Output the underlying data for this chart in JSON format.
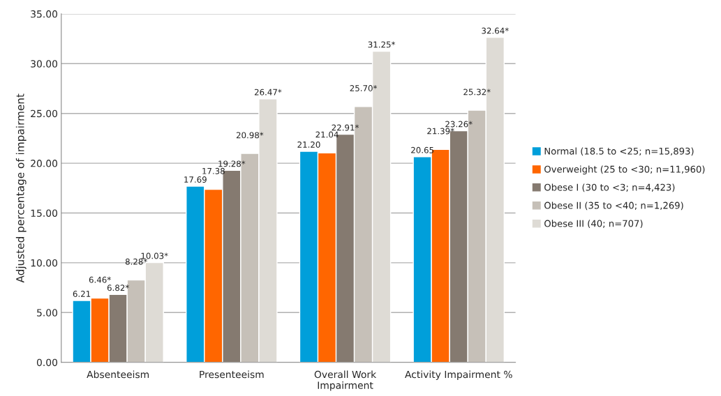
{
  "chart_data": {
    "type": "bar",
    "ylabel": "Adjusted percentage of impairment",
    "categories": [
      "Absenteeism",
      "Presenteeism",
      "Overall Work\nImpairment",
      "Activity Impairment %"
    ],
    "series": [
      {
        "name": "Normal (18.5 to <25; n=15,893)",
        "color": "#009fda",
        "values": [
          6.21,
          17.69,
          21.2,
          20.65
        ],
        "value_labels": [
          "6.21",
          "17.69",
          "21.20",
          "20.65"
        ]
      },
      {
        "name": "Overweight (25 to <30; n=11,960)",
        "color": "#ff6600",
        "values": [
          6.46,
          17.38,
          21.04,
          21.39
        ],
        "value_labels": [
          "6.46*",
          "17.38",
          "21.04",
          "21.39*"
        ]
      },
      {
        "name": "Obese I (30 to <3; n=4,423)",
        "color": "#857a70",
        "values": [
          6.82,
          19.28,
          22.91,
          23.26
        ],
        "value_labels": [
          "6.82*",
          "19.28*",
          "22.91*",
          "23.26*"
        ]
      },
      {
        "name": "Obese II (35 to <40; n=1,269)",
        "color": "#c6c0b8",
        "values": [
          8.28,
          20.98,
          25.7,
          25.32
        ],
        "value_labels": [
          "8.28*",
          "20.98*",
          "25.70*",
          "25.32*"
        ]
      },
      {
        "name": "Obese III (40; n=707)",
        "color": "#dedbd5",
        "values": [
          10.03,
          26.47,
          31.25,
          32.64
        ],
        "value_labels": [
          "10.03*",
          "26.47*",
          "31.25*",
          "32.64*"
        ]
      }
    ],
    "ylim": [
      0,
      35
    ],
    "yticks": [
      {
        "value": 0,
        "label": "0.00"
      },
      {
        "value": 5,
        "label": "5.00"
      },
      {
        "value": 10,
        "label": "10.00"
      },
      {
        "value": 15,
        "label": "15.00"
      },
      {
        "value": 20,
        "label": "20.00"
      },
      {
        "value": 25,
        "label": "25.00"
      },
      {
        "value": 30,
        "label": "30.00"
      },
      {
        "value": 35,
        "label": "35.00"
      }
    ],
    "grid": "y",
    "legend": "right"
  }
}
